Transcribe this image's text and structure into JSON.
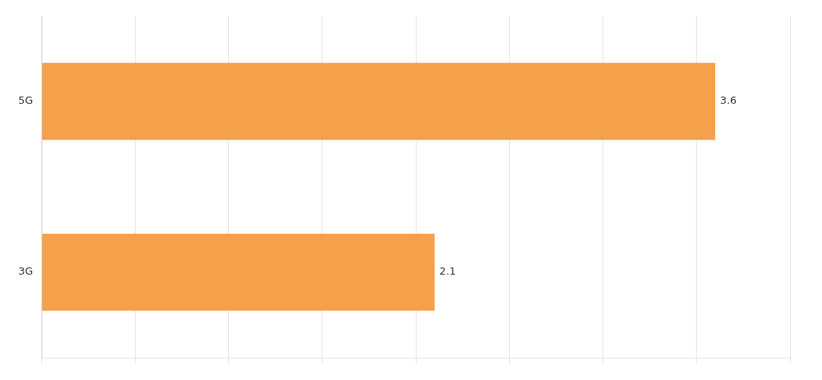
{
  "chart_data": {
    "type": "bar",
    "orientation": "horizontal",
    "categories": [
      "3G",
      "5G"
    ],
    "values": [
      2.1,
      3.6
    ],
    "color": "#F5A04B",
    "xlim": [
      0,
      4.0
    ],
    "xticks": [
      0,
      0.5,
      1.0,
      1.5,
      2.0,
      2.5,
      3.0,
      3.5,
      4.0
    ],
    "grid": true,
    "data_labels": true,
    "tick_labels": "y"
  }
}
